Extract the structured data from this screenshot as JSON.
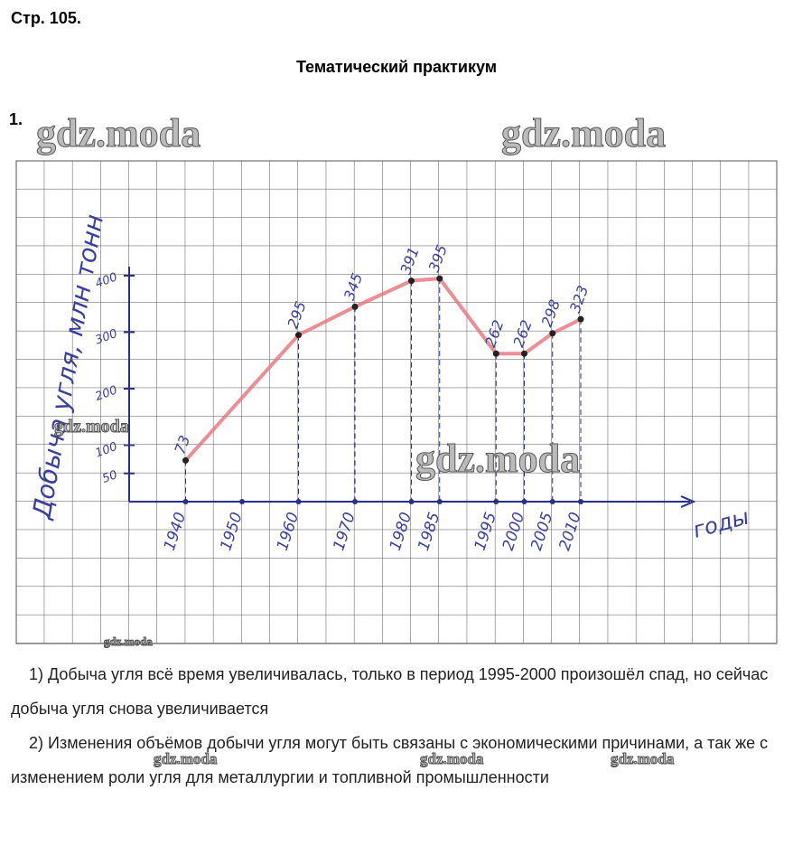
{
  "header": {
    "page": "Стр. 105.",
    "title": "Тематический практикум",
    "task": "1."
  },
  "chart_data": {
    "type": "line",
    "y_label": "Добыча угля, млн тонн",
    "x_label": "годы",
    "x": [
      1940,
      1950,
      1960,
      1970,
      1980,
      1985,
      1995,
      2000,
      2005,
      2010
    ],
    "series": [
      {
        "color": "#e8707a",
        "values": [
          73,
          null,
          295,
          345,
          391,
          395,
          262,
          262,
          298,
          323
        ]
      }
    ],
    "xlim": [
      1930,
      2030
    ],
    "xticks": [
      1940,
      1950,
      1960,
      1970,
      1980,
      1985,
      1995,
      2000,
      2005,
      2010
    ],
    "ylim": [
      0,
      400
    ],
    "yticks": [
      50,
      100,
      200,
      300,
      400
    ]
  },
  "paragraphs": [
    "1) Добыча угля всё время увеличивалась, только в период 1995-2000 произошёл спад, но сейчас добыча угля снова увеличивается",
    "2) Изменения объёмов добычи угля могут быть связаны с экономическими причинами, а так же с изменением роли угля для металлургии и топливной промышленности"
  ],
  "watermarks": [
    "gdz.moda",
    "gdz.moda",
    "gdz.moda",
    "gdz.moda",
    "gdz.moda",
    "gdz.moda",
    "gdz.moda",
    "gdz.moda"
  ]
}
